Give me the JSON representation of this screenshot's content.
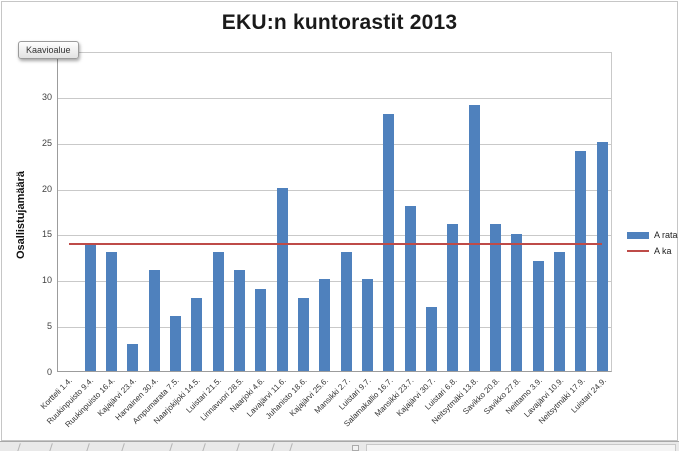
{
  "tooltip": {
    "label": "Kaavioalue"
  },
  "chart_data": {
    "type": "bar",
    "title": "EKU:n kuntorastit 2013",
    "ylabel": "Osallistujamäärä",
    "xlabel": "",
    "ylim": [
      0,
      30
    ],
    "yticks": [
      0,
      5,
      10,
      15,
      20,
      25,
      30
    ],
    "grid": true,
    "legend_position": "right",
    "categories": [
      "Kortteli 1.4.",
      "Ruukinpuisto 9.4.",
      "Ruukinpuisto 16.4.",
      "Kajajärvi 23.4.",
      "Harvainen 30.4.",
      "Ampumarata 7.5.",
      "Naarjokijoki 14.5.",
      "Luistari 21.5.",
      "Linnavuori 28.5.",
      "Naarjoki 4.6.",
      "Lavajärvi 11.6.",
      "Juhanisto 18.6.",
      "Kajajärvi 25.6.",
      "Mansikki 2.7.",
      "Luistari 9.7.",
      "Salamakallio 16.7.",
      "Mansikki 23.7.",
      "Kajajärvi 30.7.",
      "Luistari 6.8.",
      "Neitsytmäki 13.8.",
      "Savikko 20.8.",
      "Savikko 27.8.",
      "Neittamo 3.9.",
      "Lavajärvi 10.9.",
      "Neitsytmäki 17.9.",
      "Luistari 24.9."
    ],
    "series": [
      {
        "name": "A rata",
        "type": "bar",
        "color": "#4F81BD",
        "values": [
          null,
          14,
          13,
          3,
          11,
          6,
          8,
          13,
          11,
          9,
          20,
          8,
          10,
          13,
          10,
          28,
          18,
          7,
          16,
          29,
          16,
          15,
          12,
          13,
          24,
          25
        ]
      },
      {
        "name": "A ka",
        "type": "line",
        "color": "#BE4B48",
        "constant_value": 14.08
      }
    ]
  },
  "colors": {
    "gridline": "#C9C9C9",
    "axis": "#9C9C9C",
    "bar": "#4F81BD",
    "average_line": "#BE4B48"
  }
}
